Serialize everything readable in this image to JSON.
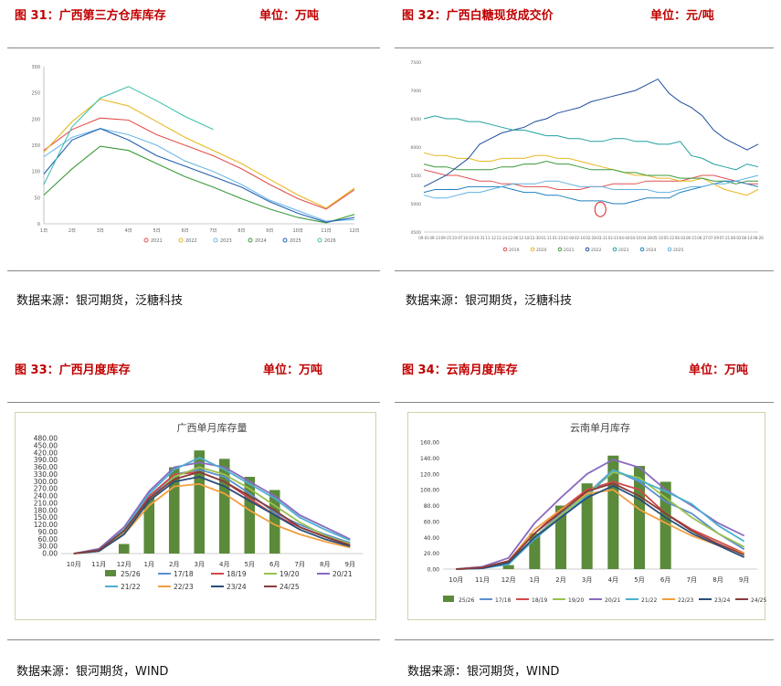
{
  "panels": [
    {
      "figure_title": "图 31：广西第三方仓库库存",
      "unit": "单位：万吨",
      "source": "数据来源：银河期货，泛糖科技"
    },
    {
      "figure_title": "图 32：广西白糖现货成交价",
      "unit": "单位：元/吨",
      "source": "数据来源：银河期货，泛糖科技"
    },
    {
      "figure_title": "图 33：广西月度库存",
      "unit": "单位：万吨",
      "source": "数据来源：银河期货，WIND"
    },
    {
      "figure_title": "图 34：云南月度库存",
      "unit": "单位：万吨",
      "source": "数据来源：银河期货，WIND"
    }
  ],
  "chart_data": [
    {
      "type": "line",
      "title": "",
      "x": [
        "1日",
        "2日",
        "3日",
        "4日",
        "5日",
        "6日",
        "7日",
        "8日",
        "9日",
        "10日",
        "11日",
        "12日"
      ],
      "ylim": [
        0,
        300
      ],
      "yticks": [
        0,
        50,
        100,
        150,
        200,
        250,
        300
      ],
      "legend_position": "bottom",
      "series": [
        {
          "name": "2021",
          "color": "#e05050",
          "values": [
            140,
            180,
            202,
            198,
            170,
            150,
            130,
            105,
            75,
            48,
            28,
            65
          ]
        },
        {
          "name": "2022",
          "color": "#e8b820",
          "values": [
            137,
            195,
            238,
            225,
            195,
            165,
            140,
            115,
            85,
            55,
            30,
            68
          ]
        },
        {
          "name": "2023",
          "color": "#70b8e8",
          "values": [
            128,
            165,
            182,
            170,
            150,
            120,
            100,
            75,
            45,
            25,
            5,
            8
          ]
        },
        {
          "name": "2024",
          "color": "#3a9a3a",
          "values": [
            55,
            105,
            148,
            140,
            115,
            90,
            70,
            48,
            28,
            12,
            2,
            18
          ]
        },
        {
          "name": "2025",
          "color": "#2060b0",
          "values": [
            95,
            160,
            182,
            160,
            130,
            110,
            90,
            70,
            42,
            20,
            3,
            12
          ]
        },
        {
          "name": "2026",
          "color": "#40c0b0",
          "values": [
            75,
            185,
            240,
            262,
            235,
            205,
            180,
            null,
            null,
            null,
            null,
            null
          ]
        }
      ]
    },
    {
      "type": "line",
      "title": "",
      "ylim": [
        4500,
        7500
      ],
      "yticks": [
        "4500",
        "5000",
        "5500",
        "6000",
        "6500",
        "7000",
        "7500"
      ],
      "xticks": [
        "09-01",
        "09-13",
        "09-25",
        "10-07",
        "10-19",
        "10-31",
        "11-12",
        "11-24",
        "12-06",
        "12-18",
        "12-30",
        "01-11",
        "01-23",
        "02-04",
        "02-16",
        "02-28",
        "03-11",
        "03-23",
        "04-04",
        "04-16",
        "04-28",
        "05-10",
        "05-22",
        "06-03",
        "06-15",
        "06-27",
        "07-09",
        "07-21",
        "08-02",
        "08-14",
        "08-26"
      ],
      "legend_position": "bottom",
      "series": [
        {
          "name": "2019",
          "color": "#e05050",
          "values": [
            5600,
            5550,
            5500,
            5500,
            5450,
            5400,
            5400,
            5350,
            5350,
            5300,
            5300,
            5300,
            5250,
            5250,
            5250,
            5300,
            5300,
            5350,
            5350,
            5350,
            5400,
            5400,
            5400,
            5400,
            5450,
            5500,
            5500,
            5450,
            5400,
            5350,
            5350
          ]
        },
        {
          "name": "2020",
          "color": "#e8b820",
          "values": [
            5900,
            5850,
            5850,
            5800,
            5800,
            5750,
            5750,
            5800,
            5800,
            5800,
            5850,
            5850,
            5800,
            5800,
            5750,
            5700,
            5650,
            5600,
            5550,
            5500,
            5500,
            5450,
            5450,
            5400,
            5400,
            5450,
            5350,
            5250,
            5200,
            5150,
            5250
          ]
        },
        {
          "name": "2021",
          "color": "#3a9a3a",
          "values": [
            5700,
            5650,
            5650,
            5600,
            5600,
            5600,
            5600,
            5650,
            5650,
            5700,
            5700,
            5750,
            5700,
            5700,
            5650,
            5600,
            5600,
            5600,
            5550,
            5550,
            5500,
            5500,
            5500,
            5450,
            5450,
            5450,
            5400,
            5400,
            5350,
            5400,
            5400
          ]
        },
        {
          "name": "2022",
          "color": "#1f4e9a",
          "values": [
            5300,
            5400,
            5500,
            5650,
            5800,
            6050,
            6150,
            6250,
            6300,
            6350,
            6450,
            6500,
            6600,
            6650,
            6700,
            6800,
            6850,
            6900,
            6950,
            7000,
            7100,
            7200,
            6950,
            6800,
            6700,
            6550,
            6300,
            6150,
            6050,
            5950,
            6050
          ]
        },
        {
          "name": "2023",
          "color": "#1fa0a0",
          "values": [
            6500,
            6550,
            6500,
            6500,
            6450,
            6450,
            6400,
            6350,
            6300,
            6300,
            6250,
            6200,
            6200,
            6150,
            6150,
            6100,
            6100,
            6150,
            6150,
            6100,
            6100,
            6050,
            6050,
            6100,
            5850,
            5800,
            5700,
            5650,
            5600,
            5700,
            5650
          ]
        },
        {
          "name": "2024",
          "color": "#2080c0",
          "values": [
            5200,
            5250,
            5250,
            5250,
            5300,
            5300,
            5300,
            5300,
            5250,
            5200,
            5200,
            5150,
            5150,
            5100,
            5050,
            5050,
            5050,
            5000,
            5000,
            5050,
            5100,
            5100,
            5100,
            5200,
            5250,
            5300,
            5350,
            5400,
            5400,
            5350,
            5300
          ]
        },
        {
          "name": "2025",
          "color": "#60b0e0",
          "values": [
            5150,
            5100,
            5100,
            5150,
            5200,
            5200,
            5250,
            5300,
            5350,
            5350,
            5350,
            5400,
            5400,
            5350,
            5300,
            5300,
            5300,
            5250,
            5250,
            5250,
            5250,
            5200,
            5200,
            5250,
            5300,
            5300,
            5350,
            5350,
            5400,
            5450,
            5500
          ]
        }
      ]
    },
    {
      "type": "bar+line",
      "title": "广西单月库存量",
      "categories": [
        "10月",
        "11月",
        "12月",
        "1月",
        "2月",
        "3月",
        "4月",
        "5月",
        "6月",
        "7月",
        "8月",
        "9月"
      ],
      "ylim": [
        0,
        480
      ],
      "yticks": [
        "0.00",
        "30.00",
        "60.00",
        "90.00",
        "120.00",
        "150.00",
        "180.00",
        "210.00",
        "240.00",
        "270.00",
        "300.00",
        "330.00",
        "360.00",
        "390.00",
        "420.00",
        "450.00",
        "480.00"
      ],
      "legend_position": "bottom",
      "bar_series": {
        "name": "25/26",
        "color": "#5a8a3a",
        "values": [
          0,
          0,
          40,
          235,
          360,
          430,
          395,
          320,
          265,
          null,
          null,
          null
        ]
      },
      "series": [
        {
          "name": "17/18",
          "color": "#5b8fd0",
          "values": [
            0,
            15,
            90,
            230,
            330,
            350,
            320,
            250,
            170,
            120,
            80,
            45
          ]
        },
        {
          "name": "18/19",
          "color": "#d04a4a",
          "values": [
            0,
            15,
            100,
            240,
            330,
            340,
            300,
            230,
            160,
            110,
            70,
            35
          ]
        },
        {
          "name": "19/20",
          "color": "#9bc050",
          "values": [
            0,
            10,
            90,
            220,
            320,
            360,
            330,
            270,
            200,
            130,
            75,
            40
          ]
        },
        {
          "name": "20/21",
          "color": "#8a6ac0",
          "values": [
            0,
            20,
            110,
            260,
            360,
            380,
            360,
            300,
            240,
            160,
            110,
            60
          ]
        },
        {
          "name": "21/22",
          "color": "#4bb0d0",
          "values": [
            0,
            15,
            100,
            250,
            350,
            400,
            350,
            290,
            230,
            150,
            100,
            55
          ]
        },
        {
          "name": "22/23",
          "color": "#f0a040",
          "values": [
            0,
            10,
            80,
            200,
            280,
            290,
            250,
            180,
            120,
            80,
            50,
            25
          ]
        },
        {
          "name": "23/24",
          "color": "#2a4e7a",
          "values": [
            0,
            10,
            80,
            220,
            300,
            320,
            280,
            220,
            160,
            100,
            60,
            30
          ]
        },
        {
          "name": "24/25",
          "color": "#8a3a3a",
          "values": [
            0,
            15,
            95,
            230,
            310,
            340,
            300,
            240,
            180,
            110,
            70,
            35
          ]
        }
      ]
    },
    {
      "type": "bar+line",
      "title": "云南单月库存",
      "categories": [
        "10月",
        "11月",
        "12月",
        "1月",
        "2月",
        "3月",
        "4月",
        "5月",
        "6月",
        "7月",
        "8月",
        "9月"
      ],
      "ylim": [
        0,
        160
      ],
      "yticks": [
        "0.00",
        "20.00",
        "40.00",
        "60.00",
        "80.00",
        "100.00",
        "120.00",
        "140.00",
        "160.00"
      ],
      "legend_position": "bottom",
      "bar_series": {
        "name": "25/26",
        "color": "#5a8a3a",
        "values": [
          0,
          0,
          5,
          45,
          80,
          108,
          143,
          130,
          110,
          null,
          null,
          null
        ]
      },
      "series": [
        {
          "name": "17/18",
          "color": "#5b8fd0",
          "values": [
            0,
            1,
            8,
            40,
            70,
            95,
            125,
            110,
            85,
            70,
            45,
            25
          ]
        },
        {
          "name": "18/19",
          "color": "#d04a4a",
          "values": [
            0,
            2,
            10,
            45,
            75,
            100,
            110,
            100,
            70,
            50,
            35,
            20
          ]
        },
        {
          "name": "19/20",
          "color": "#9bc050",
          "values": [
            0,
            1,
            8,
            40,
            68,
            95,
            122,
            115,
            90,
            65,
            45,
            28
          ]
        },
        {
          "name": "20/21",
          "color": "#8a6ac0",
          "values": [
            0,
            3,
            14,
            58,
            90,
            120,
            138,
            128,
            100,
            80,
            58,
            42
          ]
        },
        {
          "name": "21/22",
          "color": "#4bb0d0",
          "values": [
            0,
            1,
            6,
            38,
            65,
            92,
            125,
            112,
            98,
            82,
            55,
            35
          ]
        },
        {
          "name": "22/23",
          "color": "#f0a040",
          "values": [
            0,
            2,
            10,
            50,
            75,
            95,
            100,
            75,
            58,
            42,
            30,
            20
          ]
        },
        {
          "name": "23/24",
          "color": "#2a4e7a",
          "values": [
            0,
            1,
            8,
            40,
            65,
            90,
            105,
            88,
            65,
            45,
            30,
            15
          ]
        },
        {
          "name": "24/25",
          "color": "#8a3a3a",
          "values": [
            0,
            2,
            10,
            45,
            72,
            98,
            108,
            92,
            70,
            48,
            32,
            18
          ]
        }
      ]
    }
  ]
}
